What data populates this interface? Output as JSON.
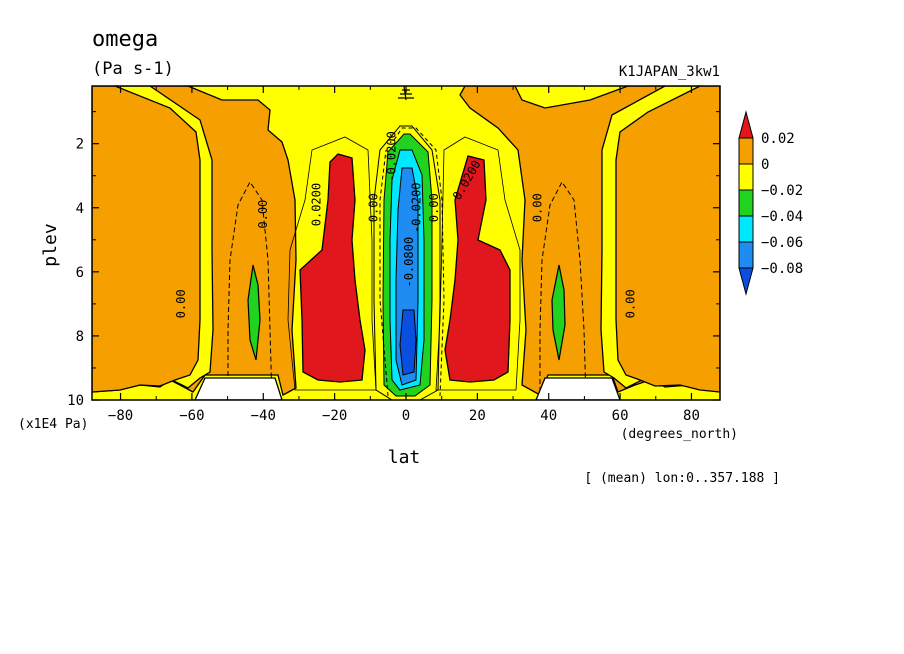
{
  "chart_data": {
    "type": "heatmap",
    "title": "omega",
    "units": "(Pa s-1)",
    "run_label": "K1JAPAN_3kw1",
    "xlabel": "lat",
    "x_units": "(degrees_north)",
    "ylabel": "plev",
    "y_units": "(x1E4 Pa)",
    "footnote": "[ (mean) lon:0..357.188 ]",
    "xlim": [
      -88,
      88
    ],
    "ylim": [
      10,
      0.2
    ],
    "x_ticks": [
      -80,
      -60,
      -40,
      -20,
      0,
      20,
      40,
      60,
      80
    ],
    "y_ticks": [
      2,
      4,
      6,
      8,
      10
    ],
    "colorbar": {
      "levels": [
        "0.02",
        "0",
        "−0.02",
        "−0.04",
        "−0.06",
        "−0.08"
      ],
      "colors": [
        "#e0171c",
        "#f5a000",
        "#ffff00",
        "#21d21e",
        "#00e8ff",
        "#1e8cf0",
        "#0a50e0"
      ]
    },
    "contour_labels": [
      {
        "text": "0.00",
        "lat": -62,
        "plev": 7.0,
        "rotate": -90
      },
      {
        "text": "0.00",
        "lat": -39,
        "plev": 4.2,
        "rotate": -90
      },
      {
        "text": "0.0200",
        "lat": -24,
        "plev": 3.9,
        "rotate": -90
      },
      {
        "text": "0.00",
        "lat": -8,
        "plev": 4.0,
        "rotate": -90
      },
      {
        "text": "-0.0200",
        "lat": -3,
        "plev": 2.4,
        "rotate": -90
      },
      {
        "text": "-0.0200",
        "lat": 4,
        "plev": 4.0,
        "rotate": -90
      },
      {
        "text": "0.00",
        "lat": 9,
        "plev": 4.0,
        "rotate": -90
      },
      {
        "text": "-0.0800",
        "lat": 2,
        "plev": 5.7,
        "rotate": -90
      },
      {
        "text": "0.0200",
        "lat": 18,
        "plev": 3.2,
        "rotate": -60
      },
      {
        "text": "0.00",
        "lat": 38,
        "plev": 4.0,
        "rotate": -90
      },
      {
        "text": "0.00",
        "lat": 64,
        "plev": 7.0,
        "rotate": -90
      }
    ]
  }
}
